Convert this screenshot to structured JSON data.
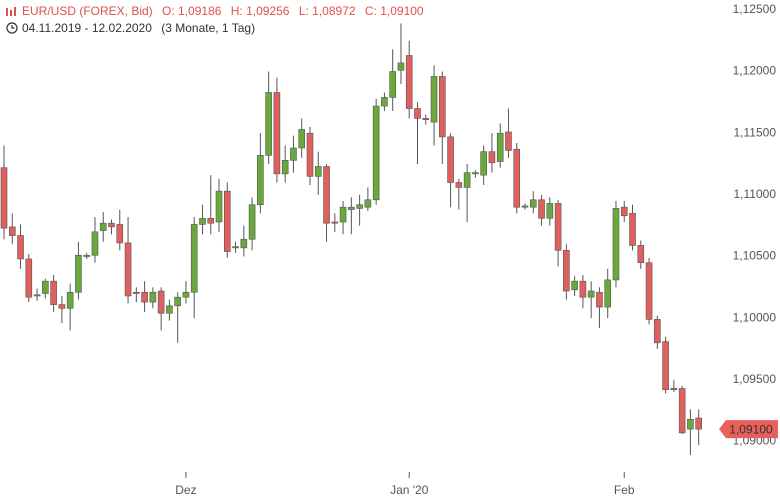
{
  "chart_data": {
    "type": "candlestick",
    "title": "EUR/USD (FOREX, Bid)",
    "ohlc_texts": [
      "O: 1,09186",
      "H: 1,09256",
      "L: 1,08972",
      "C: 1,09100"
    ],
    "date_range": "04.11.2019 - 12.02.2020",
    "period": "(3 Monate, 1 Tag)",
    "up_color": "#6aa83c",
    "down_color": "#e06060",
    "grid": false,
    "last_price": {
      "value": 1.091,
      "label": "1,09100"
    },
    "last_price_color": "#e8605e",
    "ylim": [
      1.0872,
      1.1258
    ],
    "yticks": [
      {
        "value": 1.09,
        "label": "1,09000"
      },
      {
        "value": 1.095,
        "label": "1,09500"
      },
      {
        "value": 1.1,
        "label": "1,10000"
      },
      {
        "value": 1.105,
        "label": "1,10500"
      },
      {
        "value": 1.11,
        "label": "1,11000"
      },
      {
        "value": 1.115,
        "label": "1,11500"
      },
      {
        "value": 1.12,
        "label": "1,12000"
      },
      {
        "value": 1.125,
        "label": "1,12500"
      }
    ],
    "categories": [
      null,
      null,
      null,
      null,
      null,
      null,
      null,
      null,
      null,
      null,
      null,
      null,
      null,
      null,
      null,
      null,
      null,
      null,
      null,
      null,
      null,
      null,
      "Dez",
      null,
      null,
      null,
      null,
      null,
      null,
      null,
      null,
      null,
      null,
      null,
      null,
      null,
      null,
      null,
      null,
      null,
      null,
      null,
      null,
      null,
      null,
      null,
      null,
      null,
      null,
      "Jan '20",
      null,
      null,
      null,
      null,
      null,
      null,
      null,
      null,
      null,
      null,
      null,
      null,
      null,
      null,
      null,
      null,
      null,
      null,
      null,
      null,
      null,
      null,
      null,
      null,
      null,
      "Feb",
      null,
      null,
      null,
      null,
      null,
      null,
      null,
      null,
      null
    ],
    "open": [
      1.1122,
      1.1074,
      1.1067,
      1.1048,
      1.1018,
      1.102,
      1.103,
      1.1011,
      1.1008,
      1.1021,
      1.1051,
      1.1051,
      1.1071,
      1.1077,
      1.1076,
      1.1061,
      1.1021,
      1.1021,
      1.1013,
      1.1022,
      1.1004,
      1.101,
      1.1017,
      1.1021,
      1.1076,
      1.1081,
      1.1078,
      1.1103,
      1.1057,
      1.1057,
      1.1064,
      1.1092,
      1.1132,
      1.1183,
      1.1117,
      1.1128,
      1.1138,
      1.115,
      1.1115,
      1.1123,
      1.1078,
      1.1078,
      1.1088,
      1.1089,
      1.109,
      1.1096,
      1.1172,
      1.1179,
      1.1201,
      1.1213,
      1.117,
      1.1162,
      1.1159,
      1.1196,
      1.1147,
      1.111,
      1.1106,
      1.1117,
      1.1116,
      1.1135,
      1.1127,
      1.1151,
      1.1137,
      1.109,
      1.109,
      1.1096,
      1.1081,
      1.1093,
      1.1055,
      1.1023,
      1.103,
      1.1017,
      1.1021,
      1.1009,
      1.1031,
      1.109,
      1.1085,
      1.1059,
      1.1045,
      1.0999,
      1.0981,
      1.0943,
      1.0943,
      1.091,
      1.0919
    ],
    "high": [
      1.114,
      1.1085,
      1.1076,
      1.1052,
      1.1024,
      1.1032,
      1.1035,
      1.1018,
      1.1028,
      1.1062,
      1.1053,
      1.1082,
      1.1086,
      1.108,
      1.1088,
      1.1082,
      1.1025,
      1.103,
      1.1025,
      1.1025,
      1.1015,
      1.1021,
      1.103,
      1.1082,
      1.1092,
      1.1116,
      1.1113,
      1.111,
      1.1062,
      1.1075,
      1.1098,
      1.115,
      1.12,
      1.1195,
      1.114,
      1.1148,
      1.1162,
      1.1155,
      1.1135,
      1.1125,
      1.1085,
      1.1095,
      1.1098,
      1.11,
      1.1106,
      1.1178,
      1.1183,
      1.1218,
      1.1239,
      1.1225,
      1.1175,
      1.1165,
      1.1205,
      1.12,
      1.115,
      1.1113,
      1.1125,
      1.112,
      1.114,
      1.115,
      1.1158,
      1.117,
      1.1142,
      1.1093,
      1.1103,
      1.11,
      1.1098,
      1.1096,
      1.106,
      1.1034,
      1.1035,
      1.103,
      1.1025,
      1.104,
      1.1095,
      1.1095,
      1.1092,
      1.1063,
      1.1049,
      1.1002,
      1.0985,
      1.095,
      1.0945,
      1.0926,
      1.0926
    ],
    "low": [
      1.1064,
      1.106,
      1.104,
      1.1013,
      1.1014,
      1.1016,
      1.1005,
      1.0996,
      1.099,
      1.1015,
      1.1048,
      1.1045,
      1.1062,
      1.1068,
      1.1055,
      1.1012,
      1.1013,
      1.1005,
      1.1008,
      1.099,
      1.0998,
      1.098,
      1.1012,
      1.1,
      1.1068,
      1.1068,
      1.107,
      1.1049,
      1.1053,
      1.105,
      1.1055,
      1.1085,
      1.1125,
      1.111,
      1.111,
      1.1118,
      1.113,
      1.1108,
      1.11,
      1.1062,
      1.107,
      1.1068,
      1.1068,
      1.1075,
      1.1087,
      1.1092,
      1.1168,
      1.1168,
      1.119,
      1.1162,
      1.1125,
      1.1157,
      1.114,
      1.1125,
      1.109,
      1.1088,
      1.1078,
      1.1114,
      1.1108,
      1.1118,
      1.1122,
      1.113,
      1.1085,
      1.1088,
      1.1085,
      1.1075,
      1.1075,
      1.1042,
      1.1015,
      1.1018,
      1.1008,
      1.1,
      1.0992,
      1.1,
      1.1025,
      1.1078,
      1.1055,
      1.104,
      1.0995,
      1.0975,
      1.0939,
      1.094,
      1.0906,
      1.0889,
      1.0897
    ],
    "close": [
      1.1073,
      1.1067,
      1.1048,
      1.1017,
      1.1019,
      1.103,
      1.1011,
      1.1008,
      1.1021,
      1.1051,
      1.105,
      1.107,
      1.1077,
      1.1074,
      1.1061,
      1.1018,
      1.102,
      1.1013,
      1.1021,
      1.1004,
      1.101,
      1.1017,
      1.1021,
      1.1076,
      1.1081,
      1.1077,
      1.1103,
      1.1054,
      1.1058,
      1.1064,
      1.1092,
      1.1132,
      1.1183,
      1.1117,
      1.1128,
      1.1138,
      1.1153,
      1.1115,
      1.1123,
      1.1077,
      1.1077,
      1.109,
      1.109,
      1.1092,
      1.1096,
      1.1172,
      1.1179,
      1.12,
      1.1207,
      1.117,
      1.1162,
      1.1161,
      1.1196,
      1.1147,
      1.111,
      1.1106,
      1.1118,
      1.1118,
      1.1135,
      1.1126,
      1.115,
      1.1136,
      1.109,
      1.1091,
      1.1096,
      1.1081,
      1.1093,
      1.1055,
      1.1022,
      1.103,
      1.1017,
      1.1022,
      1.1009,
      1.1031,
      1.1089,
      1.1083,
      1.1059,
      1.1045,
      1.0999,
      1.098,
      1.0942,
      1.0942,
      1.0907,
      1.0918,
      1.091
    ]
  }
}
